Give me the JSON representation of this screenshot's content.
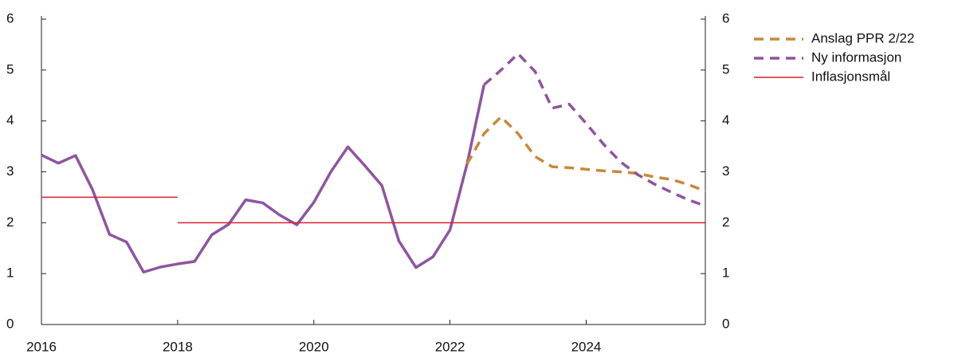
{
  "chart_data": {
    "type": "line",
    "x": [
      2016,
      2016.25,
      2016.5,
      2016.75,
      2017,
      2017.25,
      2017.5,
      2017.75,
      2018,
      2018.25,
      2018.5,
      2018.75,
      2019,
      2019.25,
      2019.5,
      2019.75,
      2020,
      2020.25,
      2020.5,
      2020.75,
      2021,
      2021.25,
      2021.5,
      2021.75,
      2022,
      2022.25,
      2022.5,
      2022.75,
      2023,
      2023.25,
      2023.5,
      2023.75,
      2024,
      2024.25,
      2024.5,
      2024.75,
      2025,
      2025.25,
      2025.5,
      2025.75
    ],
    "series": [
      {
        "color": "#8e55a0",
        "dash": false,
        "values": [
          3.33,
          3.17,
          3.32,
          2.65,
          1.77,
          1.62,
          1.03,
          1.13,
          1.19,
          1.24,
          1.76,
          1.97,
          2.45,
          2.39,
          2.15,
          1.96,
          2.4,
          3.0,
          3.49,
          3.12,
          2.73,
          1.64,
          1.12,
          1.33,
          1.86,
          3.15,
          4.71,
          null,
          null,
          null,
          null,
          null,
          null,
          null,
          null,
          null,
          null,
          null,
          null,
          null
        ]
      },
      {
        "name": "Anslag PPR 2/22",
        "color": "#c8893a",
        "dash": true,
        "values": [
          null,
          null,
          null,
          null,
          null,
          null,
          null,
          null,
          null,
          null,
          null,
          null,
          null,
          null,
          null,
          null,
          null,
          null,
          null,
          null,
          null,
          null,
          null,
          null,
          null,
          3.15,
          3.75,
          4.08,
          3.75,
          3.3,
          3.1,
          3.08,
          3.05,
          3.02,
          3.0,
          2.97,
          2.9,
          2.85,
          2.75,
          2.62
        ]
      },
      {
        "name": "Ny informasjon",
        "color": "#8e55a0",
        "dash": true,
        "values": [
          null,
          null,
          null,
          null,
          null,
          null,
          null,
          null,
          null,
          null,
          null,
          null,
          null,
          null,
          null,
          null,
          null,
          null,
          null,
          null,
          null,
          null,
          null,
          null,
          null,
          null,
          4.71,
          5.0,
          5.32,
          4.97,
          4.25,
          4.33,
          3.95,
          3.55,
          3.2,
          2.95,
          2.76,
          2.6,
          2.45,
          2.33
        ]
      },
      {
        "name": "Inflasjonsmål",
        "color": "#d62030",
        "dash": false,
        "thin": true,
        "x": [
          2016,
          2018,
          2018,
          2018,
          2025.75
        ],
        "values": [
          2.5,
          2.5,
          null,
          2,
          2
        ]
      }
    ],
    "xlim": [
      2016,
      2025.75
    ],
    "xticks": [
      2016,
      2018,
      2020,
      2022,
      2024
    ],
    "ylim": [
      0,
      6
    ],
    "yticks": [
      0,
      1,
      2,
      3,
      4,
      5,
      6
    ],
    "y2lim": [
      0,
      6
    ],
    "y2ticks": [
      0,
      1,
      2,
      3,
      4,
      5,
      6
    ],
    "legend": "right"
  }
}
